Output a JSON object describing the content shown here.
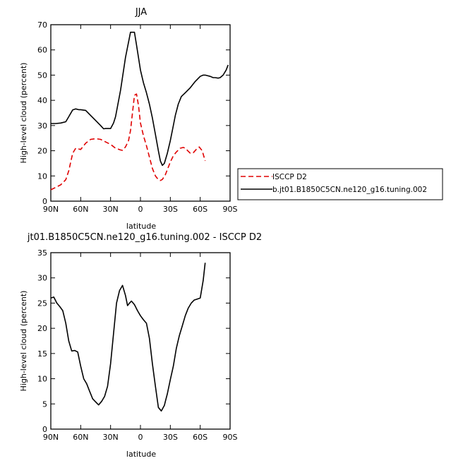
{
  "chart_data": [
    {
      "type": "line",
      "title": "JJA",
      "xlabel": "latitude",
      "ylabel": "High-level cloud (percent)",
      "xlim": [
        -90,
        90
      ],
      "ylim": [
        0,
        70
      ],
      "x_tick_labels": [
        "90N",
        "60N",
        "30N",
        "0",
        "30S",
        "60S",
        "90S"
      ],
      "y_tick_labels": [
        "0",
        "10",
        "20",
        "30",
        "40",
        "50",
        "60",
        "70"
      ],
      "legend_position": "right-bottom",
      "series": [
        {
          "name": "ISCCP D2",
          "color": "#e00000",
          "dash": "dashed",
          "x": [
            -90,
            -85,
            -80,
            -75,
            -72,
            -68,
            -65,
            -60,
            -58,
            -55,
            -50,
            -45,
            -40,
            -35,
            -30,
            -25,
            -20,
            -18,
            -15,
            -12,
            -10,
            -8,
            -6,
            -4,
            -2,
            0,
            3,
            6,
            9,
            12,
            15,
            18,
            20,
            22,
            25,
            28,
            30,
            33,
            36,
            40,
            43,
            45,
            48,
            50,
            53,
            56,
            59,
            62,
            65
          ],
          "y": [
            4.5,
            5.5,
            6.5,
            8.5,
            12,
            19,
            21,
            20.5,
            21.5,
            23,
            24.5,
            24.8,
            24.5,
            23.5,
            22.5,
            21,
            20.3,
            20.2,
            21.5,
            24,
            28,
            35,
            42,
            42.5,
            38,
            31,
            26,
            22,
            17.5,
            13,
            10,
            8.5,
            8.2,
            8.6,
            10.5,
            13.5,
            15.5,
            18,
            19.5,
            21,
            21.3,
            21,
            19.8,
            19,
            19.2,
            20.5,
            21.5,
            20,
            16
          ]
        },
        {
          "name": "b.jt01.B1850C5CN.ne120_g16.tuning.002",
          "color": "#000000",
          "dash": "solid",
          "x": [
            -90,
            -85,
            -80,
            -75,
            -72,
            -68,
            -65,
            -62,
            -60,
            -55,
            -50,
            -45,
            -40,
            -37,
            -35,
            -30,
            -27,
            -25,
            -20,
            -15,
            -10,
            -8,
            -6,
            -4,
            -2,
            0,
            3,
            6,
            9,
            12,
            15,
            18,
            20,
            22,
            24,
            27,
            30,
            33,
            35,
            38,
            41,
            45,
            50,
            55,
            60,
            63,
            65,
            70,
            73,
            75,
            78,
            80,
            83,
            86,
            88
          ],
          "y": [
            30.8,
            30.8,
            31,
            31.5,
            33.5,
            36.2,
            36.6,
            36.3,
            36.3,
            36,
            34,
            32,
            30,
            28.7,
            28.8,
            28.8,
            31,
            33.5,
            44,
            57,
            67,
            67,
            67,
            62,
            57,
            52,
            47,
            43,
            38.5,
            33,
            26.5,
            20,
            16,
            14.2,
            15,
            19,
            24,
            30,
            34,
            38.5,
            41.5,
            43,
            45,
            47.5,
            49.5,
            50,
            50,
            49.5,
            49,
            49,
            48.8,
            49,
            50,
            52,
            54
          ]
        }
      ]
    },
    {
      "type": "line",
      "title": "jt01.B1850C5CN.ne120_g16.tuning.002 - ISCCP D2",
      "xlabel": "latitude",
      "ylabel": "High-level cloud (percent)",
      "xlim": [
        -90,
        90
      ],
      "ylim": [
        0,
        35
      ],
      "x_tick_labels": [
        "90N",
        "60N",
        "30N",
        "0",
        "30S",
        "60S",
        "90S"
      ],
      "y_tick_labels": [
        "0",
        "5",
        "10",
        "15",
        "20",
        "25",
        "30",
        "35"
      ],
      "series": [
        {
          "color": "#000000",
          "dash": "solid",
          "x": [
            -90,
            -87,
            -84,
            -81,
            -78,
            -75,
            -72,
            -69,
            -66,
            -63,
            -60,
            -57,
            -54,
            -51,
            -48,
            -45,
            -42,
            -39,
            -36,
            -33,
            -30,
            -27,
            -24,
            -21,
            -18,
            -15,
            -13,
            -11,
            -9,
            -6,
            -3,
            0,
            3,
            6,
            9,
            12,
            15,
            18,
            21,
            24,
            25,
            27,
            30,
            33,
            36,
            39,
            42,
            45,
            48,
            51,
            54,
            57,
            60,
            63,
            65
          ],
          "y": [
            26,
            26.2,
            25,
            24.3,
            23.5,
            21,
            17.5,
            15.5,
            15.6,
            15.3,
            12.5,
            10,
            9,
            7.5,
            6,
            5.4,
            4.8,
            5.5,
            6.5,
            8.5,
            13,
            19,
            25,
            27.5,
            28.5,
            26.5,
            24.5,
            25,
            25.4,
            24.7,
            23.5,
            22.5,
            21.7,
            21,
            18,
            13,
            8.5,
            4.3,
            3.6,
            4.7,
            5.5,
            7,
            9.8,
            12.5,
            16,
            18.5,
            20.5,
            22.5,
            24,
            25,
            25.6,
            25.8,
            26,
            29.5,
            33
          ]
        }
      ]
    }
  ]
}
